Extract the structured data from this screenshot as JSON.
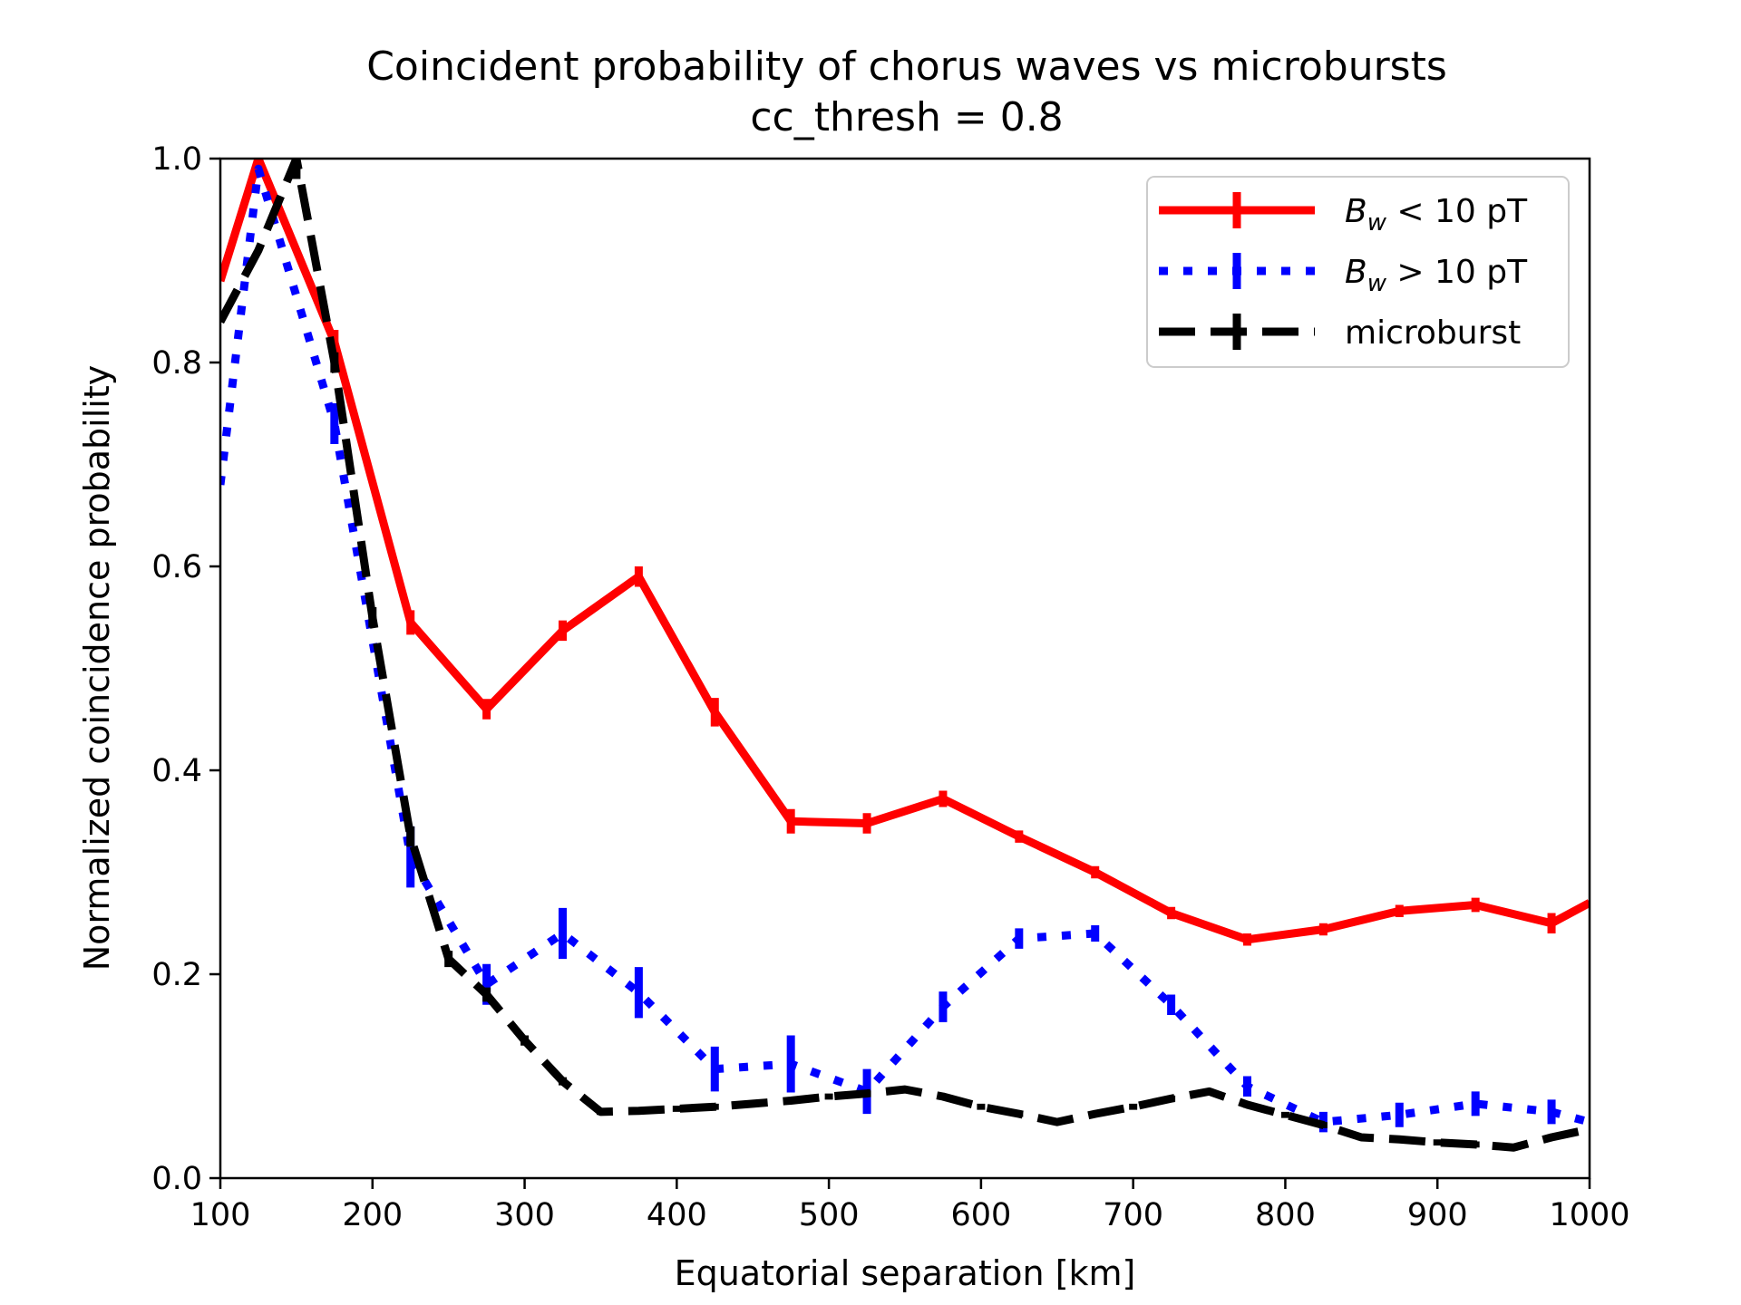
{
  "chart_data": {
    "type": "line",
    "title": "Coincident probability of chorus waves vs microbursts",
    "subtitle": "cc_thresh = 0.8",
    "xlabel": "Equatorial separation [km]",
    "ylabel": "Normalized coincidence probability",
    "xlim": [
      100,
      1000
    ],
    "ylim": [
      0.0,
      1.0
    ],
    "xticks": [
      100,
      200,
      300,
      400,
      500,
      600,
      700,
      800,
      900,
      1000
    ],
    "yticks": [
      0.0,
      0.2,
      0.4,
      0.6,
      0.8,
      1.0
    ],
    "xtick_labels": [
      "100",
      "200",
      "300",
      "400",
      "500",
      "600",
      "700",
      "800",
      "900",
      "1000"
    ],
    "ytick_labels": [
      "0.0",
      "0.2",
      "0.4",
      "0.6",
      "0.8",
      "1.0"
    ],
    "grid": false,
    "legend_position": "top-right",
    "series": [
      {
        "name_parts": [
          "B",
          "w",
          " < 10 pT"
        ],
        "color": "#ff0000",
        "style": "solid",
        "x": [
          100,
          125,
          175,
          225,
          275,
          325,
          375,
          425,
          475,
          525,
          575,
          625,
          675,
          725,
          775,
          825,
          875,
          925,
          975,
          1000
        ],
        "y": [
          0.88,
          1.0,
          0.82,
          0.545,
          0.46,
          0.537,
          0.59,
          0.457,
          0.35,
          0.348,
          0.372,
          0.335,
          0.3,
          0.26,
          0.234,
          0.244,
          0.262,
          0.268,
          0.25,
          0.27
        ],
        "err": [
          0.0,
          0.0,
          0.012,
          0.012,
          0.01,
          0.01,
          0.01,
          0.014,
          0.012,
          0.01,
          0.008,
          0.006,
          0.006,
          0.006,
          0.006,
          0.006,
          0.006,
          0.007,
          0.01,
          0.0
        ]
      },
      {
        "name_parts": [
          "B",
          "w",
          " > 10 pT"
        ],
        "color": "#0000ff",
        "style": "dotted",
        "x": [
          100,
          125,
          175,
          225,
          275,
          325,
          375,
          425,
          475,
          525,
          575,
          625,
          675,
          725,
          775,
          825,
          875,
          925,
          975,
          1000
        ],
        "y": [
          0.68,
          0.99,
          0.74,
          0.315,
          0.19,
          0.24,
          0.182,
          0.107,
          0.112,
          0.085,
          0.168,
          0.235,
          0.24,
          0.17,
          0.09,
          0.055,
          0.062,
          0.073,
          0.065,
          0.055
        ],
        "err": [
          0.0,
          0.0,
          0.02,
          0.03,
          0.02,
          0.025,
          0.025,
          0.022,
          0.028,
          0.022,
          0.015,
          0.01,
          0.008,
          0.01,
          0.01,
          0.01,
          0.012,
          0.012,
          0.012,
          0.0
        ]
      },
      {
        "name": "microburst",
        "color": "#000000",
        "style": "dashed",
        "x": [
          100,
          125,
          150,
          175,
          200,
          225,
          250,
          275,
          300,
          325,
          350,
          375,
          400,
          425,
          450,
          475,
          500,
          525,
          550,
          575,
          600,
          625,
          650,
          675,
          700,
          725,
          750,
          775,
          800,
          825,
          850,
          875,
          900,
          925,
          950,
          975,
          1000
        ],
        "y": [
          0.84,
          0.91,
          1.0,
          0.8,
          0.55,
          0.335,
          0.215,
          0.18,
          0.135,
          0.095,
          0.065,
          0.066,
          0.068,
          0.07,
          0.073,
          0.076,
          0.08,
          0.083,
          0.087,
          0.08,
          0.07,
          0.063,
          0.055,
          0.063,
          0.07,
          0.078,
          0.085,
          0.072,
          0.062,
          0.052,
          0.04,
          0.038,
          0.035,
          0.033,
          0.03,
          0.04,
          0.048
        ],
        "err": [
          0.0,
          0.0,
          0.02,
          0.01,
          0.01,
          0.01,
          0.008,
          0.007,
          0.005,
          0.004,
          0.003,
          0.003,
          0.003,
          0.003,
          0.003,
          0.003,
          0.003,
          0.003,
          0.003,
          0.003,
          0.003,
          0.003,
          0.003,
          0.003,
          0.003,
          0.003,
          0.003,
          0.003,
          0.003,
          0.003,
          0.003,
          0.003,
          0.003,
          0.003,
          0.003,
          0.003,
          0.0
        ]
      }
    ]
  }
}
